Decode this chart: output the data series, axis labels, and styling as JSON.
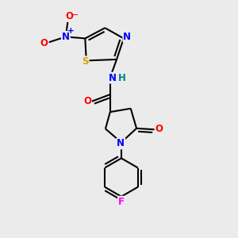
{
  "bg_color": "#ebebeb",
  "atom_colors": {
    "C": "#000000",
    "N": "#0000ff",
    "O": "#ff0000",
    "S": "#ccaa00",
    "F": "#ff00ff",
    "H": "#008080"
  },
  "bond_color": "#000000",
  "bond_width": 1.5,
  "figsize": [
    3.0,
    3.0
  ],
  "dpi": 100
}
